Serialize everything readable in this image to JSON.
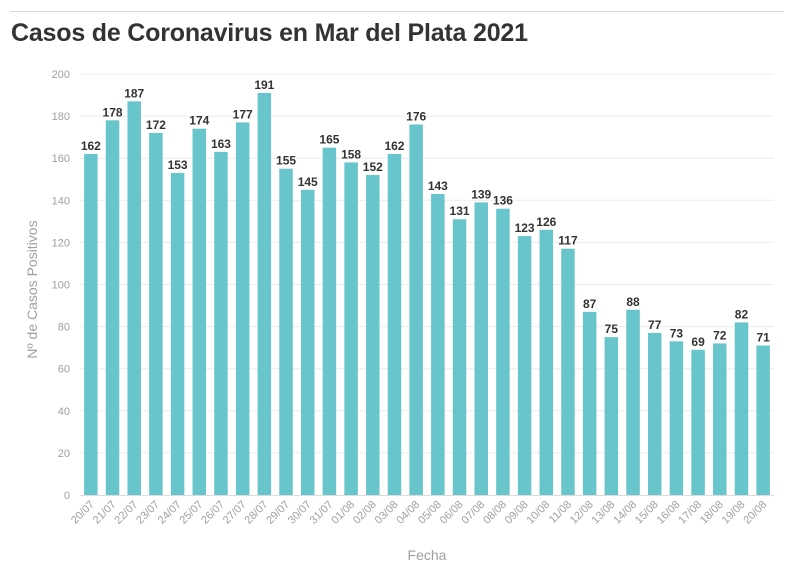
{
  "chart_data": {
    "type": "bar",
    "title": "Casos de Coronavirus en Mar del Plata 2021",
    "xlabel": "Fecha",
    "ylabel": "Nº de Casos Positivos",
    "ylim": [
      0,
      200
    ],
    "yticks": [
      0,
      20,
      40,
      60,
      80,
      100,
      120,
      140,
      160,
      180,
      200
    ],
    "grid": true,
    "bar_color": "#69c5cc",
    "categories": [
      "20/07",
      "21/07",
      "22/07",
      "23/07",
      "24/07",
      "25/07",
      "26/07",
      "27/07",
      "28/07",
      "29/07",
      "30/07",
      "31/07",
      "01/08",
      "02/08",
      "03/08",
      "04/08",
      "05/08",
      "06/08",
      "07/08",
      "08/08",
      "09/08",
      "10/08",
      "11/08",
      "12/08",
      "13/08",
      "14/08",
      "15/08",
      "16/08",
      "17/08",
      "18/08",
      "19/08",
      "20/08"
    ],
    "values": [
      162,
      178,
      187,
      172,
      153,
      174,
      163,
      177,
      191,
      155,
      145,
      165,
      158,
      152,
      162,
      176,
      143,
      131,
      139,
      136,
      123,
      126,
      117,
      87,
      75,
      88,
      77,
      73,
      69,
      72,
      82,
      71
    ]
  }
}
